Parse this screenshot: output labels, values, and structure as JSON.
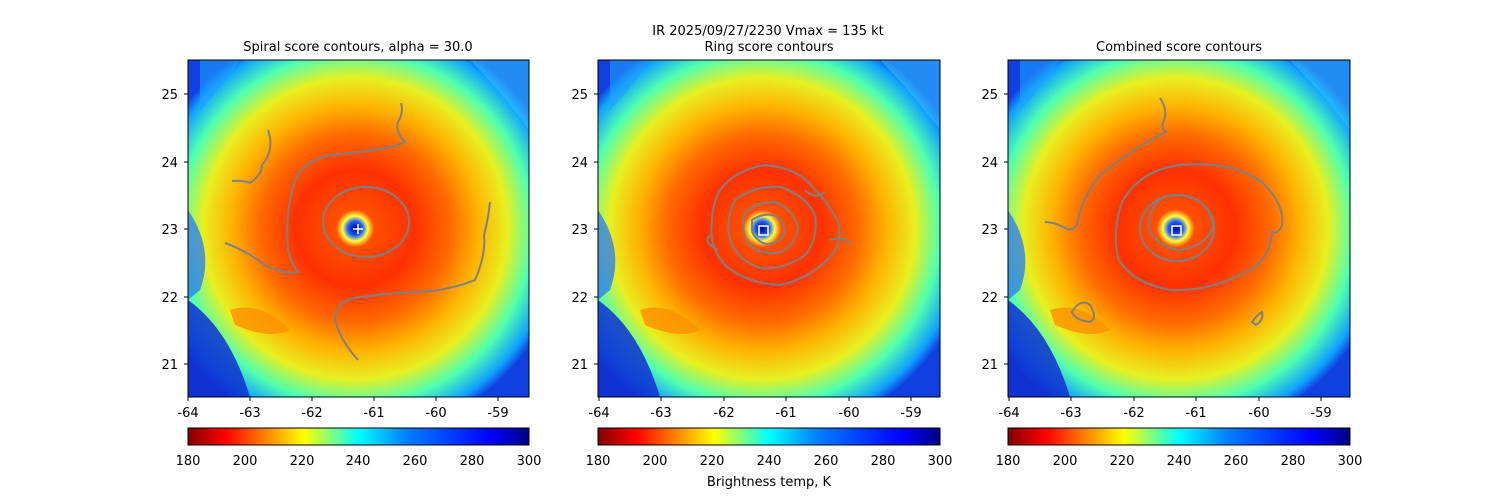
{
  "figure": {
    "suptitle_line1": "IR  2025/09/27/2230    Vmax = 135 kt",
    "colorbar_label": "Brightness temp, K"
  },
  "colors": {
    "contour": "#808080",
    "marker": "#ffffff"
  },
  "chart_data": [
    {
      "type": "heatmap",
      "title": "Spiral score contours, alpha = 30.0",
      "xlim": [
        -64.0,
        -58.5
      ],
      "ylim": [
        20.5,
        25.5
      ],
      "xticks": [
        "-64",
        "-63",
        "-62",
        "-61",
        "-60",
        "-59"
      ],
      "yticks": [
        "21",
        "22",
        "23",
        "24",
        "25"
      ],
      "center": [
        -61.3,
        23.0
      ],
      "marker": "plus",
      "colorbar": {
        "cmap": "jet_r",
        "range": [
          180,
          300
        ],
        "ticks": [
          "180",
          "200",
          "220",
          "240",
          "260",
          "280",
          "300"
        ]
      }
    },
    {
      "type": "heatmap",
      "title": "Ring score contours",
      "xlim": [
        -64.0,
        -58.5
      ],
      "ylim": [
        20.5,
        25.5
      ],
      "xticks": [
        "-64",
        "-63",
        "-62",
        "-61",
        "-60",
        "-59"
      ],
      "yticks": [
        "21",
        "22",
        "23",
        "24",
        "25"
      ],
      "center": [
        -61.4,
        22.97
      ],
      "marker": "square",
      "colorbar": {
        "cmap": "jet_r",
        "range": [
          180,
          300
        ],
        "ticks": [
          "180",
          "200",
          "220",
          "240",
          "260",
          "280",
          "300"
        ]
      }
    },
    {
      "type": "heatmap",
      "title": "Combined score contours",
      "xlim": [
        -64.0,
        -58.5
      ],
      "ylim": [
        20.5,
        25.5
      ],
      "xticks": [
        "-64",
        "-63",
        "-62",
        "-61",
        "-60",
        "-59"
      ],
      "yticks": [
        "21",
        "22",
        "23",
        "24",
        "25"
      ],
      "center": [
        -61.3,
        22.97
      ],
      "marker": "square",
      "colorbar": {
        "cmap": "jet_r",
        "range": [
          180,
          300
        ],
        "ticks": [
          "180",
          "200",
          "220",
          "240",
          "260",
          "280",
          "300"
        ]
      }
    }
  ]
}
